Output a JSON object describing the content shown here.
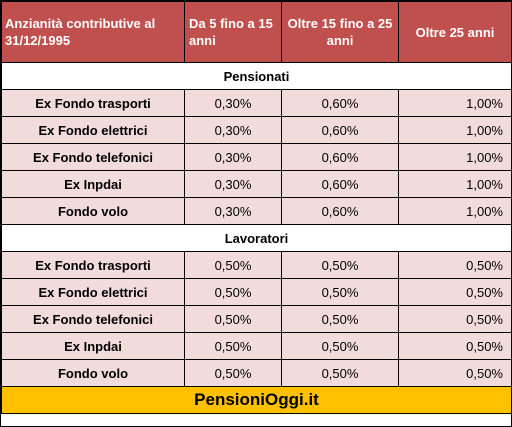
{
  "headers": [
    "Anzianità contributive al 31/12/1995",
    "Da 5 fino a 15 anni",
    "Oltre 15 fino a 25 anni",
    "Oltre 25 anni"
  ],
  "sections": [
    {
      "title": "Pensionati",
      "rows": [
        {
          "label": "Ex Fondo trasporti",
          "values": [
            "0,30%",
            "0,60%",
            "1,00%"
          ]
        },
        {
          "label": "Ex Fondo elettrici",
          "values": [
            "0,30%",
            "0,60%",
            "1,00%"
          ]
        },
        {
          "label": "Ex Fondo telefonici",
          "values": [
            "0,30%",
            "0,60%",
            "1,00%"
          ]
        },
        {
          "label": "Ex Inpdai",
          "values": [
            "0,30%",
            "0,60%",
            "1,00%"
          ]
        },
        {
          "label": "Fondo volo",
          "values": [
            "0,30%",
            "0,60%",
            "1,00%"
          ]
        }
      ]
    },
    {
      "title": "Lavoratori",
      "rows": [
        {
          "label": "Ex Fondo trasporti",
          "values": [
            "0,50%",
            "0,50%",
            "0,50%"
          ]
        },
        {
          "label": "Ex Fondo elettrici",
          "values": [
            "0,50%",
            "0,50%",
            "0,50%"
          ]
        },
        {
          "label": "Ex Fondo telefonici",
          "values": [
            "0,50%",
            "0,50%",
            "0,50%"
          ]
        },
        {
          "label": "Ex Inpdai",
          "values": [
            "0,50%",
            "0,50%",
            "0,50%"
          ]
        },
        {
          "label": "Fondo volo",
          "values": [
            "0,50%",
            "0,50%",
            "0,50%"
          ]
        }
      ]
    }
  ],
  "footer": "PensioniOggi.it",
  "colors": {
    "header_bg": "#c0504d",
    "row_bg": "#f2dcdb",
    "footer_bg": "#ffc000"
  }
}
